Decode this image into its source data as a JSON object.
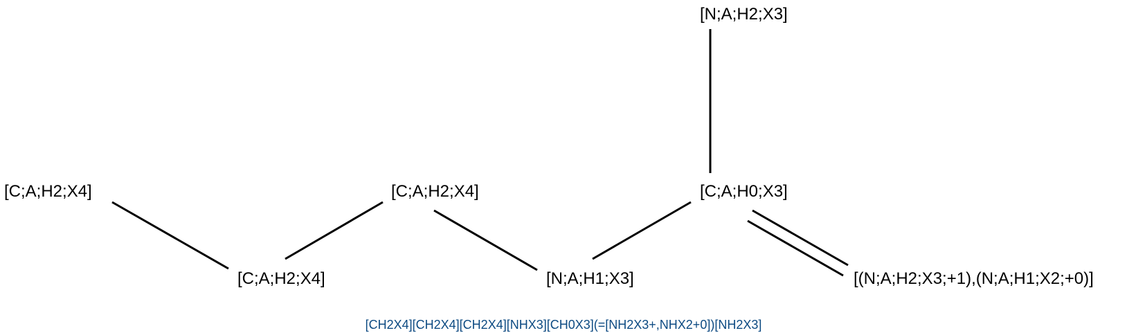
{
  "colors": {
    "caption": "#0c4a82",
    "bond": "#000000",
    "atom": "#000000"
  },
  "atoms": {
    "c1": "[C;A;H2;X4]",
    "c2": "[C;A;H2;X4]",
    "c3": "[C;A;H2;X4]",
    "n1": "[N;A;H1;X3]",
    "c4": "[C;A;H0;X3]",
    "n2": "[N;A;H2;X3]",
    "n3": "[(N;A;H2;X3;+1),(N;A;H1;X2;+0)]"
  },
  "bonds": [
    {
      "from": "c1",
      "to": "c2",
      "order": "single"
    },
    {
      "from": "c2",
      "to": "c3",
      "order": "single"
    },
    {
      "from": "c3",
      "to": "n1",
      "order": "single"
    },
    {
      "from": "n1",
      "to": "c4",
      "order": "single"
    },
    {
      "from": "c4",
      "to": "n2",
      "order": "single"
    },
    {
      "from": "c4",
      "to": "n3",
      "order": "double"
    }
  ],
  "caption": "[CH2X4][CH2X4][CH2X4][NHX3][CH0X3](=[NH2X3+,NHX2+0])[NH2X3]"
}
